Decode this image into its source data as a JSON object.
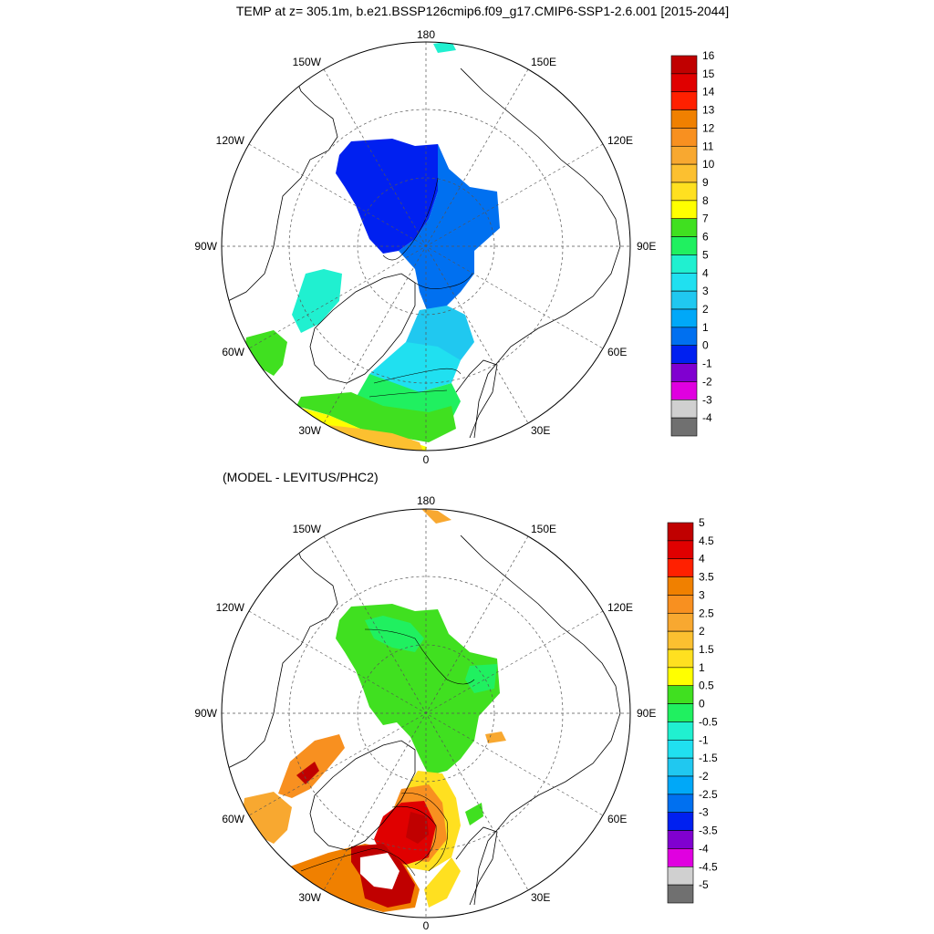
{
  "title": "TEMP at z= 305.1m, b.e21.BSSP126cmip6.f09_g17.CMIP6-SSP1-2.6.001 [2015-2044]",
  "subtitle": "(MODEL - LEVITUS/PHC2)",
  "map_top": {
    "lon_labels": {
      "n": "180",
      "nw": "150W",
      "ne": "150E",
      "wnw": "120W",
      "ene": "120E",
      "w": "90W",
      "e": "90E",
      "wsw": "60W",
      "ese": "60E",
      "sw": "30W",
      "se": "30E",
      "s": "0"
    },
    "colorbar": {
      "labels": [
        "16",
        "15",
        "14",
        "13",
        "12",
        "11",
        "10",
        "9",
        "8",
        "7",
        "6",
        "5",
        "4",
        "3",
        "2",
        "1",
        "0",
        "-1",
        "-2",
        "-3",
        "-4"
      ],
      "colors": [
        "#c00000",
        "#e00000",
        "#ff2000",
        "#f08000",
        "#f89020",
        "#f8a830",
        "#fcc030",
        "#ffe020",
        "#ffff00",
        "#40e020",
        "#20f060",
        "#20f0d0",
        "#20e0f0",
        "#20c8f0",
        "#00a8f8",
        "#0070f0",
        "#0020f0",
        "#8000d0",
        "#e000e0",
        "#d0d0d0",
        "#707070"
      ]
    }
  },
  "map_bottom": {
    "lon_labels": {
      "n": "180",
      "nw": "150W",
      "ne": "150E",
      "wnw": "120W",
      "ene": "120E",
      "w": "90W",
      "e": "90E",
      "wsw": "60W",
      "ese": "60E",
      "sw": "30W",
      "se": "30E",
      "s": "0"
    },
    "colorbar": {
      "labels": [
        "5",
        "4.5",
        "4",
        "3.5",
        "3",
        "2.5",
        "2",
        "1.5",
        "1",
        "0.5",
        "0",
        "-0.5",
        "-1",
        "-1.5",
        "-2",
        "-2.5",
        "-3",
        "-3.5",
        "-4",
        "-4.5",
        "-5"
      ],
      "colors": [
        "#c00000",
        "#e00000",
        "#ff2000",
        "#f08000",
        "#f89020",
        "#f8a830",
        "#fcc030",
        "#ffe020",
        "#ffff00",
        "#40e020",
        "#20f060",
        "#20f0d0",
        "#20e0f0",
        "#20c8f0",
        "#00a8f8",
        "#0070f0",
        "#0020f0",
        "#8000d0",
        "#e000e0",
        "#d0d0d0",
        "#707070"
      ]
    }
  }
}
